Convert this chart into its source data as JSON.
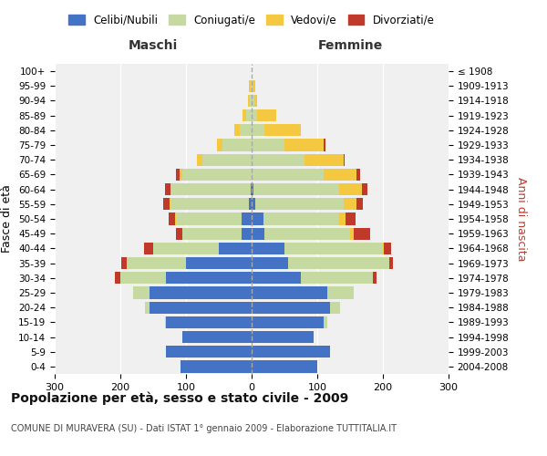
{
  "age_groups": [
    "0-4",
    "5-9",
    "10-14",
    "15-19",
    "20-24",
    "25-29",
    "30-34",
    "35-39",
    "40-44",
    "45-49",
    "50-54",
    "55-59",
    "60-64",
    "65-69",
    "70-74",
    "75-79",
    "80-84",
    "85-89",
    "90-94",
    "95-99",
    "100+"
  ],
  "birth_years": [
    "2004-2008",
    "1999-2003",
    "1994-1998",
    "1989-1993",
    "1984-1988",
    "1979-1983",
    "1974-1978",
    "1969-1973",
    "1964-1968",
    "1959-1963",
    "1954-1958",
    "1949-1953",
    "1944-1948",
    "1939-1943",
    "1934-1938",
    "1929-1933",
    "1924-1928",
    "1919-1923",
    "1914-1918",
    "1909-1913",
    "≤ 1908"
  ],
  "males": {
    "celibi": [
      108,
      130,
      105,
      130,
      155,
      155,
      130,
      100,
      50,
      15,
      15,
      4,
      2,
      0,
      0,
      0,
      0,
      0,
      0,
      0,
      0
    ],
    "coniugati": [
      0,
      0,
      0,
      2,
      8,
      25,
      70,
      90,
      100,
      90,
      100,
      120,
      120,
      105,
      75,
      45,
      18,
      8,
      3,
      2,
      0
    ],
    "vedovi": [
      0,
      0,
      0,
      0,
      0,
      0,
      0,
      0,
      0,
      0,
      1,
      1,
      2,
      5,
      8,
      8,
      8,
      6,
      3,
      2,
      0
    ],
    "divorziati": [
      0,
      0,
      0,
      0,
      0,
      0,
      8,
      8,
      14,
      10,
      10,
      10,
      8,
      5,
      0,
      0,
      0,
      0,
      0,
      0,
      0
    ]
  },
  "females": {
    "nubili": [
      100,
      120,
      95,
      110,
      120,
      115,
      75,
      55,
      50,
      20,
      18,
      5,
      3,
      0,
      0,
      0,
      0,
      0,
      0,
      0,
      0
    ],
    "coniugate": [
      0,
      0,
      0,
      5,
      15,
      40,
      110,
      155,
      150,
      130,
      115,
      135,
      130,
      110,
      80,
      50,
      20,
      8,
      4,
      2,
      0
    ],
    "vedove": [
      0,
      0,
      0,
      0,
      0,
      0,
      0,
      0,
      2,
      5,
      10,
      20,
      35,
      50,
      60,
      60,
      55,
      30,
      5,
      3,
      0
    ],
    "divorziate": [
      0,
      0,
      0,
      0,
      0,
      0,
      5,
      5,
      10,
      25,
      15,
      10,
      8,
      5,
      2,
      2,
      0,
      0,
      0,
      0,
      0
    ]
  },
  "colors": {
    "celibi_nubili": "#4472C4",
    "coniugati_e": "#C5D9A0",
    "vedovi_e": "#F5C842",
    "divorziati_e": "#C0392B"
  },
  "title": "Popolazione per età, sesso e stato civile - 2009",
  "subtitle": "COMUNE DI MURAVERA (SU) - Dati ISTAT 1° gennaio 2009 - Elaborazione TUTTITALIA.IT",
  "xlabel_left": "Maschi",
  "xlabel_right": "Femmine",
  "ylabel_left": "Fasce di età",
  "ylabel_right": "Anni di nascita",
  "xlim": 300,
  "legend_labels": [
    "Celibi/Nubili",
    "Coniugati/e",
    "Vedovi/e",
    "Divorziati/e"
  ],
  "bg_color": "#ffffff",
  "plot_bg_color": "#f0f0f0",
  "grid_color": "#ffffff"
}
